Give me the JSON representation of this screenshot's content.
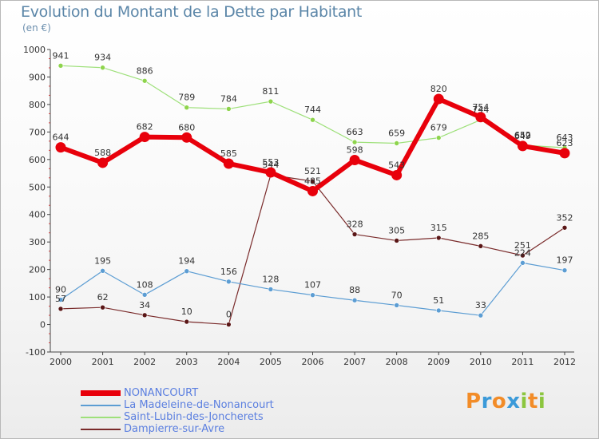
{
  "header": {
    "title": "Evolution du Montant de la Dette par Habitant",
    "unit": "(en €)"
  },
  "logo": {
    "text": "Proxiti",
    "letters": [
      {
        "ch": "P",
        "color": "#f28c28"
      },
      {
        "ch": "r",
        "color": "#3b9ad9"
      },
      {
        "ch": "o",
        "color": "#f28c28"
      },
      {
        "ch": "x",
        "color": "#3b9ad9"
      },
      {
        "ch": "i",
        "color": "#8cc63f"
      },
      {
        "ch": "t",
        "color": "#f28c28"
      },
      {
        "ch": "i",
        "color": "#8cc63f"
      }
    ]
  },
  "chart_data": {
    "type": "line",
    "title": "Evolution du Montant de la Dette par Habitant",
    "ylabel": "(en €)",
    "xlabel": "",
    "x": [
      "2000",
      "2001",
      "2002",
      "2003",
      "2004",
      "2005",
      "2006",
      "2007",
      "2008",
      "2009",
      "2010",
      "2011",
      "2012"
    ],
    "ylim": [
      -100,
      1000
    ],
    "yticks": [
      -100,
      0,
      100,
      200,
      300,
      400,
      500,
      600,
      700,
      800,
      900,
      1000
    ],
    "grid": false,
    "legend_position": "bottom-left",
    "series": [
      {
        "name": "NONANCOURT",
        "color": "#e8000b",
        "values": [
          644,
          588,
          682,
          680,
          585,
          553,
          485,
          598,
          543,
          820,
          754,
          649,
          623
        ]
      },
      {
        "name": "La Madeleine-de-Nonancourt",
        "color": "#5c9dd3",
        "values": [
          90,
          195,
          108,
          194,
          156,
          128,
          107,
          88,
          70,
          51,
          33,
          224,
          197
        ]
      },
      {
        "name": "Saint-Lubin-des-Joncherets",
        "color": "#9ee07a",
        "values": [
          941,
          934,
          886,
          789,
          784,
          811,
          744,
          663,
          659,
          679,
          744,
          652,
          643
        ]
      },
      {
        "name": "Dampierre-sur-Avre",
        "color": "#7a2b2b",
        "values": [
          57,
          62,
          34,
          10,
          0,
          544,
          521,
          328,
          305,
          315,
          285,
          251,
          352
        ]
      }
    ],
    "value_labels": [
      [
        "644",
        "588",
        "682",
        "680",
        "585",
        "553",
        "485",
        "598",
        "543",
        "820",
        "754",
        "649",
        "623"
      ],
      [
        "90",
        "195",
        "108",
        "194",
        "156",
        "128",
        "107",
        "88",
        "70",
        "51",
        "33",
        "224",
        "197"
      ],
      [
        "941",
        "934",
        "886",
        "789",
        "784",
        "811",
        "744",
        "663",
        "659",
        "679",
        "744",
        "652",
        "643"
      ],
      [
        "57",
        "62",
        "34",
        "10",
        "0",
        "544",
        "521",
        "328",
        "305",
        "315",
        "285",
        "251",
        "352"
      ]
    ]
  }
}
